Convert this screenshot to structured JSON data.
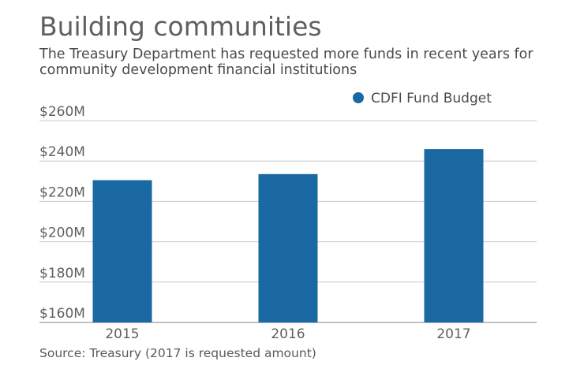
{
  "title": "Building communities",
  "subtitle": "The Treasury Department has requested more funds in recent years for community development financial institutions",
  "source": "Source: Treasury (2017 is requested amount)",
  "chart_data": {
    "type": "bar",
    "categories": [
      "2015",
      "2016",
      "2017"
    ],
    "series": [
      {
        "name": "CDFI Fund Budget",
        "color": "#1a69a3",
        "values": [
          230.5,
          233.5,
          245.9
        ]
      }
    ],
    "y_ticks": [
      160,
      180,
      200,
      220,
      240,
      260
    ],
    "y_tick_labels": [
      "$160M",
      "$180M",
      "$200M",
      "$220M",
      "$240M",
      "$260M"
    ],
    "ylim": [
      160,
      260
    ],
    "unit": "$M",
    "grid": true,
    "legend_position": "top-right"
  }
}
